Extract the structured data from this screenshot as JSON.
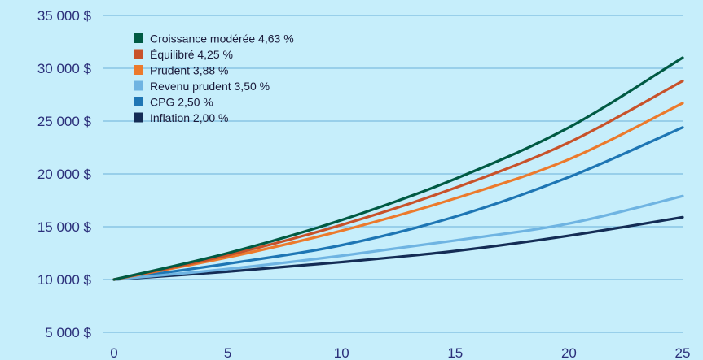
{
  "chart_data": {
    "type": "line",
    "title": "",
    "xlabel": "",
    "ylabel": "",
    "x": [
      0,
      5,
      10,
      15,
      20,
      25
    ],
    "xlim": [
      0,
      25
    ],
    "ylim": [
      5000,
      35000
    ],
    "x_ticks": [
      0,
      5,
      10,
      15,
      20,
      25
    ],
    "y_ticks": [
      5000,
      10000,
      15000,
      20000,
      25000,
      30000,
      35000
    ],
    "y_tick_labels": [
      "5 000 $",
      "10 000 $",
      "15 000 $",
      "20 000 $",
      "25 000 $",
      "30 000 $",
      "35 000 $"
    ],
    "grid": "horizontal",
    "legend_position": "top-left",
    "series": [
      {
        "name": "Croissance modérée 4,63 %",
        "color": "#005a43",
        "values": [
          10000,
          12500,
          15630,
          19530,
          24400,
          31000
        ]
      },
      {
        "name": "Équilibré 4,25 %",
        "color": "#c8522a",
        "values": [
          10000,
          12300,
          15170,
          18680,
          22980,
          28800
        ]
      },
      {
        "name": "Prudent 3,88 %",
        "color": "#ec7a2c",
        "values": [
          10000,
          12100,
          14620,
          17680,
          21380,
          26700
        ]
      },
      {
        "name": "Revenu prudent 3,50 %",
        "color": "#6fb4e2",
        "values": [
          10000,
          11000,
          12250,
          13700,
          15300,
          17900
        ]
      },
      {
        "name": "CPG 2,50 %",
        "color": "#1e76b4",
        "values": [
          10000,
          11500,
          13250,
          15950,
          19700,
          24400
        ]
      },
      {
        "name": "Inflation 2,00 %",
        "color": "#142c55",
        "values": [
          10000,
          10750,
          11650,
          12700,
          14150,
          15900
        ]
      }
    ]
  }
}
